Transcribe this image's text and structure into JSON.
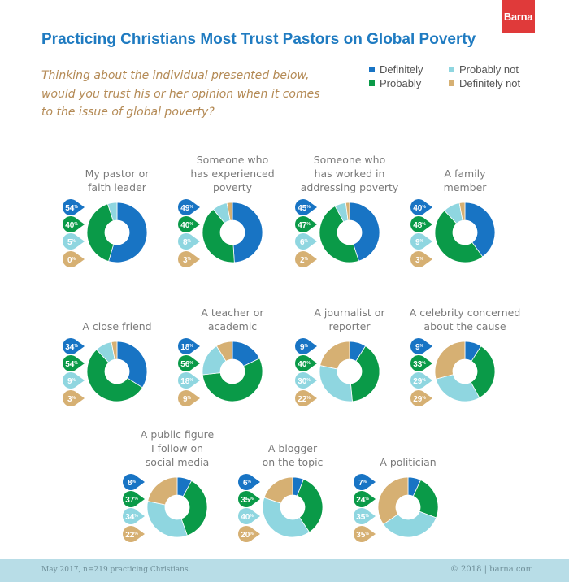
{
  "brand": "Barna",
  "title": "Practicing Christians Most Trust Pastors on Global Poverty",
  "question": "Thinking about the individual presented below, would you trust his or her opinion when it comes to the issue of global poverty?",
  "footer": {
    "source": "May 2017, n=219 practicing Christians.",
    "copyright": "© 2018 | barna.com"
  },
  "colors": {
    "definitely": "#1874c4",
    "probably": "#0a9a48",
    "probably_not": "#8fd6e0",
    "definitely_not": "#d6b073"
  },
  "legend": [
    {
      "key": "definitely",
      "label": "Definitely"
    },
    {
      "key": "probably_not",
      "label": "Probably not"
    },
    {
      "key": "probably",
      "label": "Probably"
    },
    {
      "key": "definitely_not",
      "label": "Definitely not"
    }
  ],
  "chart_data": {
    "type": "pie",
    "series_names": [
      "Definitely",
      "Probably",
      "Probably not",
      "Definitely not"
    ],
    "unit": "%",
    "charts": [
      {
        "label": [
          "My pastor or",
          "faith leader"
        ],
        "values": [
          54,
          40,
          5,
          0
        ]
      },
      {
        "label": [
          "Someone who",
          "has experienced",
          "poverty"
        ],
        "values": [
          49,
          40,
          8,
          3
        ]
      },
      {
        "label": [
          "Someone who",
          "has worked in",
          "addressing poverty"
        ],
        "values": [
          45,
          47,
          6,
          2
        ]
      },
      {
        "label": [
          "A family",
          "member"
        ],
        "values": [
          40,
          48,
          9,
          3
        ]
      },
      {
        "label": [
          "A close friend"
        ],
        "values": [
          34,
          54,
          9,
          3
        ]
      },
      {
        "label": [
          "A teacher or",
          "academic"
        ],
        "values": [
          18,
          56,
          18,
          9
        ]
      },
      {
        "label": [
          "A journalist or",
          "reporter"
        ],
        "values": [
          9,
          40,
          30,
          22
        ]
      },
      {
        "label": [
          "A celebrity concerned",
          "about the cause"
        ],
        "values": [
          9,
          33,
          29,
          29
        ]
      },
      {
        "label": [
          "A public figure",
          "I follow on",
          "social media"
        ],
        "values": [
          8,
          37,
          34,
          22
        ]
      },
      {
        "label": [
          "A blogger",
          "on the topic"
        ],
        "values": [
          6,
          35,
          40,
          20
        ]
      },
      {
        "label": [
          "A politician"
        ],
        "values": [
          7,
          24,
          35,
          35
        ]
      }
    ]
  }
}
